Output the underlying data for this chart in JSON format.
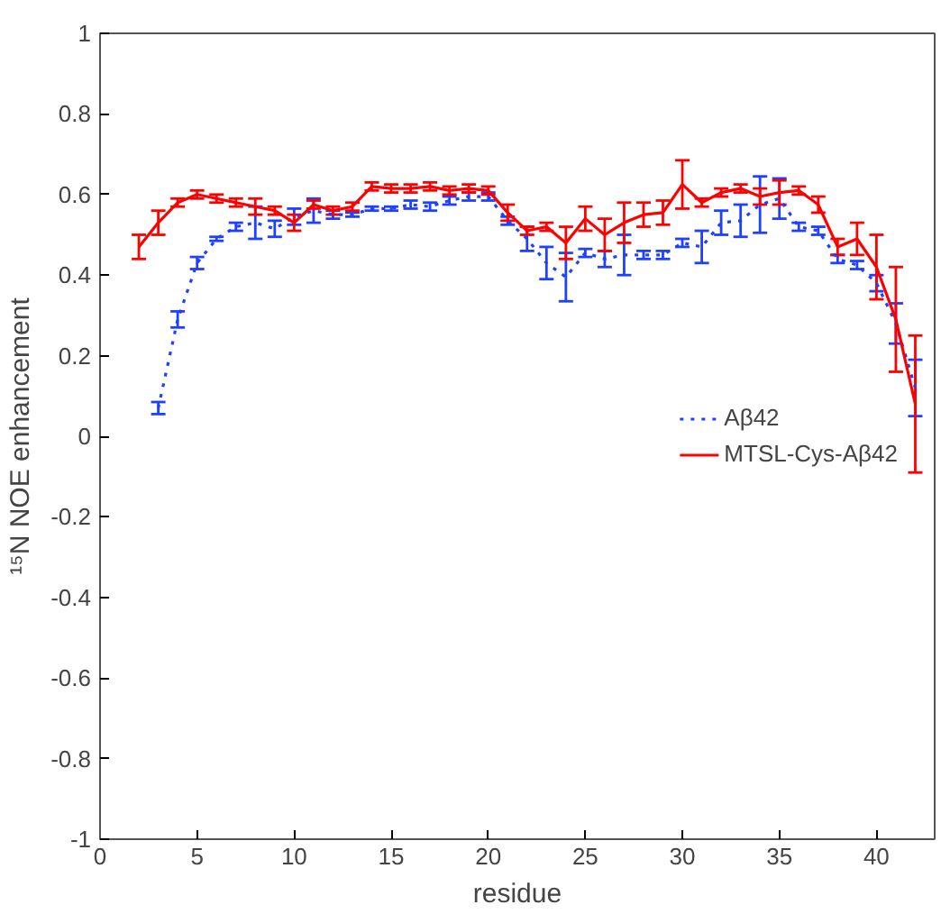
{
  "chart_data": {
    "type": "line",
    "xlabel": "residue",
    "ylabel": "¹⁵N NOE enhancement",
    "xlim": [
      0,
      43
    ],
    "ylim": [
      -1,
      1
    ],
    "xticks": [
      0,
      5,
      10,
      15,
      20,
      25,
      30,
      35,
      40
    ],
    "yticks": [
      -1,
      -0.8,
      -0.6,
      -0.4,
      -0.2,
      0,
      0.2,
      0.4,
      0.6,
      0.8,
      1
    ],
    "grid": false,
    "legend": "right",
    "marker": "none",
    "series": [
      {
        "name": "Aβ42",
        "color": "#2040ff",
        "line_style": "dotted",
        "x": [
          3,
          4,
          5,
          6,
          7,
          8,
          9,
          10,
          11,
          12,
          13,
          14,
          15,
          16,
          17,
          18,
          19,
          20,
          21,
          22,
          23,
          24,
          25,
          26,
          27,
          28,
          29,
          30,
          31,
          32,
          33,
          34,
          35,
          36,
          37,
          38,
          39,
          40,
          41,
          42
        ],
        "values": [
          0.07,
          0.29,
          0.43,
          0.49,
          0.52,
          0.53,
          0.515,
          0.545,
          0.56,
          0.55,
          0.55,
          0.565,
          0.565,
          0.575,
          0.57,
          0.585,
          0.595,
          0.595,
          0.535,
          0.49,
          0.43,
          0.395,
          0.455,
          0.44,
          0.45,
          0.45,
          0.45,
          0.48,
          0.47,
          0.53,
          0.535,
          0.575,
          0.59,
          0.52,
          0.51,
          0.44,
          0.425,
          0.38,
          0.28,
          0.12
        ],
        "errors": [
          0.015,
          0.02,
          0.015,
          0.005,
          0.01,
          0.04,
          0.02,
          0.02,
          0.03,
          0.01,
          0.005,
          0.005,
          0.005,
          0.01,
          0.01,
          0.01,
          0.01,
          0.01,
          0.01,
          0.03,
          0.04,
          0.06,
          0.01,
          0.02,
          0.05,
          0.01,
          0.01,
          0.01,
          0.04,
          0.03,
          0.04,
          0.07,
          0.05,
          0.01,
          0.01,
          0.01,
          0.01,
          0.02,
          0.05,
          0.07
        ]
      },
      {
        "name": "MTSL-Cys-Aβ42",
        "color": "#ff0000",
        "line_style": "solid",
        "x": [
          2,
          3,
          4,
          5,
          6,
          7,
          8,
          9,
          10,
          11,
          12,
          13,
          14,
          15,
          16,
          17,
          18,
          19,
          20,
          21,
          22,
          23,
          24,
          25,
          26,
          27,
          28,
          29,
          30,
          31,
          32,
          33,
          34,
          35,
          36,
          37,
          38,
          39,
          40,
          41,
          42
        ],
        "values": [
          0.47,
          0.53,
          0.58,
          0.6,
          0.59,
          0.58,
          0.57,
          0.56,
          0.53,
          0.575,
          0.56,
          0.57,
          0.62,
          0.615,
          0.615,
          0.62,
          0.61,
          0.615,
          0.61,
          0.555,
          0.51,
          0.52,
          0.48,
          0.54,
          0.5,
          0.53,
          0.55,
          0.555,
          0.625,
          0.58,
          0.605,
          0.615,
          0.595,
          0.605,
          0.61,
          0.575,
          0.47,
          0.49,
          0.42,
          0.29,
          0.08
        ],
        "errors": [
          0.03,
          0.03,
          0.01,
          0.01,
          0.01,
          0.01,
          0.02,
          0.01,
          0.02,
          0.01,
          0.01,
          0.01,
          0.01,
          0.01,
          0.01,
          0.01,
          0.01,
          0.01,
          0.01,
          0.02,
          0.01,
          0.01,
          0.04,
          0.03,
          0.04,
          0.05,
          0.03,
          0.03,
          0.06,
          0.01,
          0.01,
          0.01,
          0.02,
          0.03,
          0.01,
          0.02,
          0.02,
          0.04,
          0.08,
          0.13,
          0.17
        ]
      }
    ]
  }
}
